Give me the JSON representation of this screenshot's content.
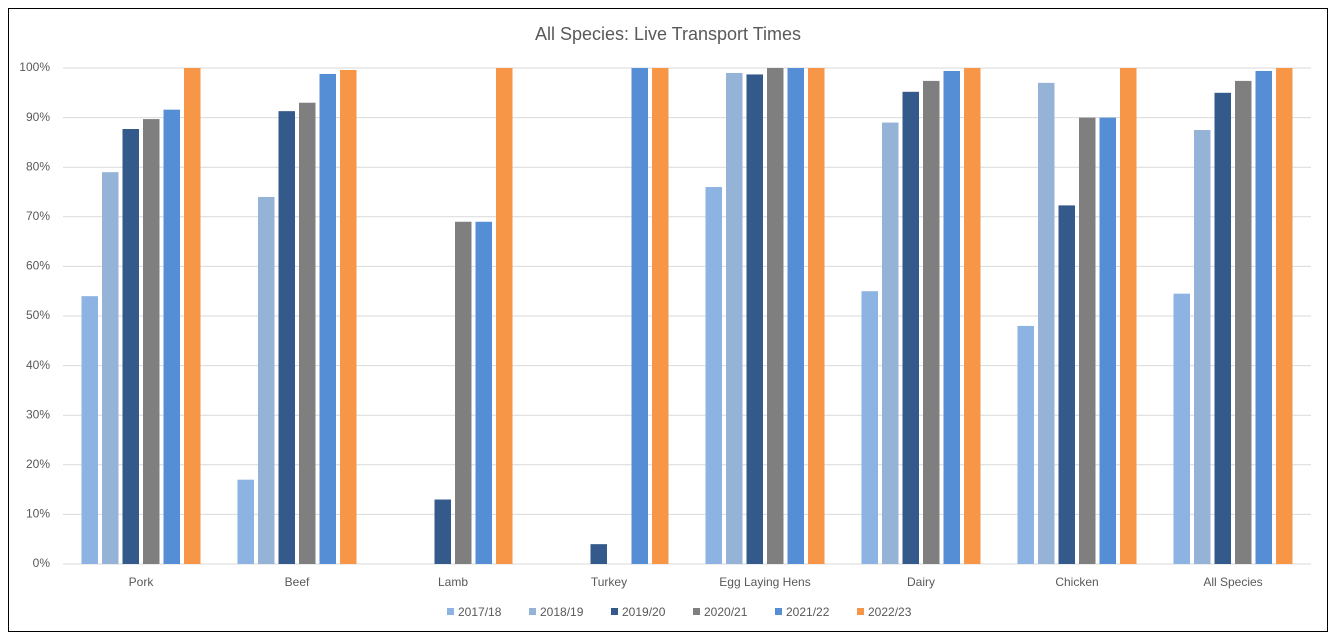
{
  "chart_data": {
    "type": "bar",
    "title": "All Species: Live Transport Times",
    "categories": [
      "Pork",
      "Beef",
      "Lamb",
      "Turkey",
      "Egg Laying Hens",
      "Dairy",
      "Chicken",
      "All Species"
    ],
    "series": [
      {
        "name": "2017/18",
        "color": "#8db3e2",
        "values": [
          54,
          17,
          null,
          null,
          76,
          55,
          48,
          54.5
        ]
      },
      {
        "name": "2018/19",
        "color": "#95b3d7",
        "values": [
          79,
          74,
          null,
          null,
          99,
          89,
          97,
          87.5
        ]
      },
      {
        "name": "2019/20",
        "color": "#335a8a",
        "values": [
          87.7,
          91.3,
          13,
          4,
          98.7,
          95.2,
          72.3,
          95
        ]
      },
      {
        "name": "2020/21",
        "color": "#7f7f7f",
        "values": [
          89.7,
          93,
          69,
          null,
          100,
          97.4,
          90,
          97.4
        ]
      },
      {
        "name": "2021/22",
        "color": "#558ed5",
        "values": [
          91.6,
          98.8,
          69,
          100,
          100,
          99.4,
          90,
          99.4
        ]
      },
      {
        "name": "2022/23",
        "color": "#f79646",
        "values": [
          100,
          99.6,
          100,
          100,
          100,
          100,
          100,
          100
        ]
      }
    ],
    "ylim": [
      0,
      100
    ],
    "yticks": [
      {
        "value": 0,
        "label": "0%"
      },
      {
        "value": 10,
        "label": "10%"
      },
      {
        "value": 20,
        "label": "20%"
      },
      {
        "value": 30,
        "label": "30%"
      },
      {
        "value": 40,
        "label": "40%"
      },
      {
        "value": 50,
        "label": "50%"
      },
      {
        "value": 60,
        "label": "60%"
      },
      {
        "value": 70,
        "label": "70%"
      },
      {
        "value": 80,
        "label": "80%"
      },
      {
        "value": 90,
        "label": "90%"
      },
      {
        "value": 100,
        "label": "100%"
      }
    ],
    "grid": true
  }
}
